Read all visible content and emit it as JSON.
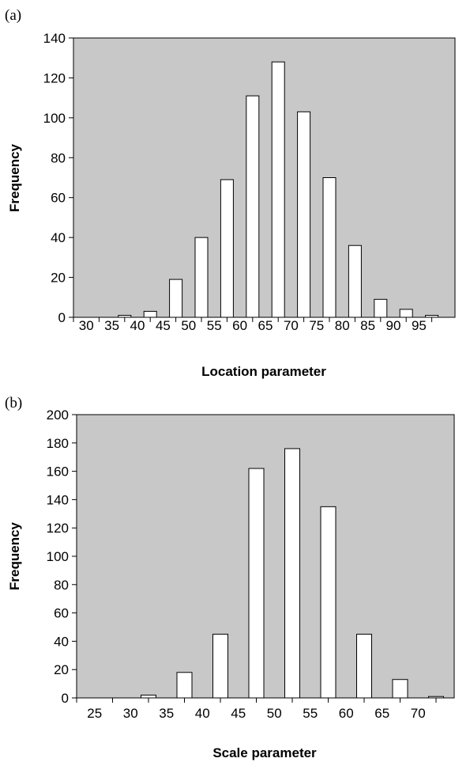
{
  "chart_data": [
    {
      "panel_label": "(a)",
      "type": "bar",
      "categories": [
        "30",
        "35",
        "40",
        "45",
        "50",
        "55",
        "60",
        "65",
        "70",
        "75",
        "80",
        "85",
        "90",
        "95"
      ],
      "values": [
        0,
        1,
        3,
        19,
        40,
        69,
        111,
        128,
        103,
        70,
        36,
        9,
        4,
        1
      ],
      "xlabel": "Location parameter",
      "ylabel": "Frequency",
      "ylim": [
        0,
        140
      ],
      "yticks": [
        0,
        20,
        40,
        60,
        80,
        100,
        120,
        140
      ],
      "plot_background": "#c8c8c8",
      "bar_fill": "#ffffff",
      "grid": false
    },
    {
      "panel_label": "(b)",
      "type": "bar",
      "categories": [
        "25",
        "30",
        "35",
        "40",
        "45",
        "50",
        "55",
        "60",
        "65",
        "70"
      ],
      "values": [
        0,
        2,
        18,
        45,
        162,
        176,
        135,
        45,
        13,
        1
      ],
      "xlabel": "Scale parameter",
      "ylabel": "Frequency",
      "ylim": [
        0,
        200
      ],
      "yticks": [
        0,
        20,
        40,
        60,
        80,
        100,
        120,
        140,
        160,
        180,
        200
      ],
      "plot_background": "#c8c8c8",
      "bar_fill": "#ffffff",
      "grid": false
    }
  ]
}
